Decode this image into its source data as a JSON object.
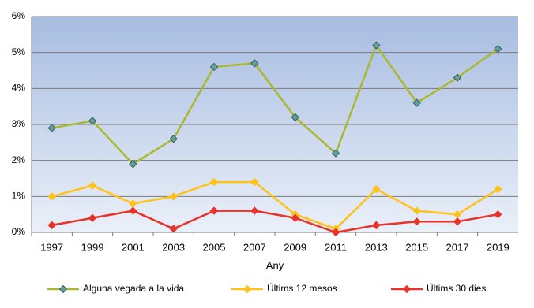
{
  "chart_data": {
    "type": "line",
    "x_label": "Any",
    "categories": [
      "1997",
      "1999",
      "2001",
      "2003",
      "2005",
      "2007",
      "2009",
      "2011",
      "2013",
      "2015",
      "2017",
      "2019"
    ],
    "series": [
      {
        "name": "Alguna vegada a la vida",
        "color": "#a9b82c",
        "marker_color": "#5ba3a0",
        "values": [
          2.9,
          3.1,
          1.9,
          2.6,
          4.6,
          4.7,
          3.2,
          2.2,
          5.2,
          3.6,
          4.3,
          5.1
        ]
      },
      {
        "name": "Últims 12 mesos",
        "color": "#ffc21a",
        "marker_color": "#ffc21a",
        "values": [
          1.0,
          1.3,
          0.8,
          1.0,
          1.4,
          1.4,
          0.5,
          0.1,
          1.2,
          0.6,
          0.5,
          1.2
        ]
      },
      {
        "name": "Últims 30 dies",
        "color": "#e8322a",
        "marker_color": "#e8322a",
        "values": [
          0.2,
          0.4,
          0.6,
          0.1,
          0.6,
          0.6,
          0.4,
          0.0,
          0.2,
          0.3,
          0.3,
          0.5
        ]
      }
    ],
    "ylim": [
      0,
      6
    ],
    "yticks": [
      {
        "value": 0,
        "label": "0%"
      },
      {
        "value": 1,
        "label": "1%"
      },
      {
        "value": 2,
        "label": "2%"
      },
      {
        "value": 3,
        "label": "3%"
      },
      {
        "value": 4,
        "label": "4%"
      },
      {
        "value": 5,
        "label": "5%"
      },
      {
        "value": 6,
        "label": "6%"
      }
    ],
    "grid": true
  }
}
